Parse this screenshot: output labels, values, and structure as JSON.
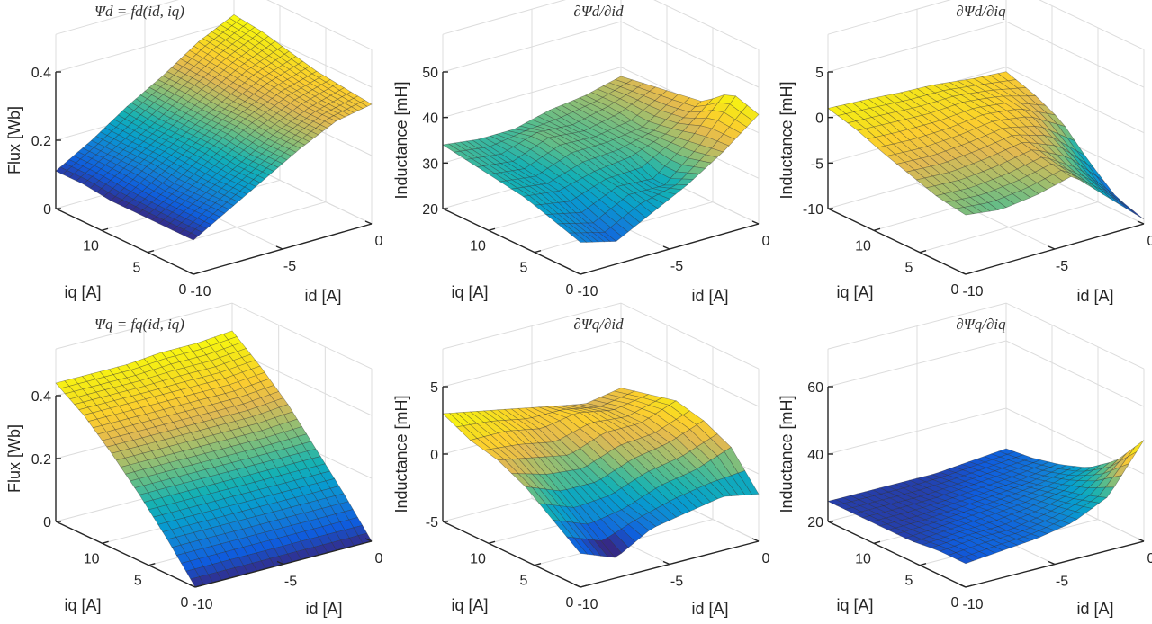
{
  "chart_data": [
    {
      "type": "surface",
      "title": "Ψd = fd(id, iq)",
      "title_parts": {
        "lhs": "Ψ",
        "lhs_sub": "d",
        "rhs": "f",
        "rhs_sub": "d",
        "args": [
          "i",
          "d",
          "i",
          "q"
        ]
      },
      "xlabel": "id [A]",
      "ylabel": "iq [A]",
      "zlabel": "Flux [Wb]",
      "x_ticks": [
        "-10",
        "-5",
        "0"
      ],
      "x_tick_values": [
        -10,
        -5,
        0
      ],
      "y_ticks": [
        "0",
        "5",
        "10"
      ],
      "y_tick_values": [
        0,
        5,
        10
      ],
      "z_ticks": [
        "0",
        "0.2",
        "0.4"
      ],
      "z_tick_values": [
        0,
        0.2,
        0.4
      ],
      "xlim": [
        -10,
        0
      ],
      "ylim": [
        0,
        15
      ],
      "zlim": [
        0,
        0.4
      ],
      "grid": true,
      "x": [
        -10,
        -8,
        -6,
        -4,
        -2,
        0
      ],
      "y": [
        0,
        3,
        6,
        9,
        12,
        15
      ],
      "z": [
        [
          0.1,
          0.16,
          0.22,
          0.28,
          0.33,
          0.35
        ],
        [
          0.1,
          0.16,
          0.22,
          0.28,
          0.33,
          0.36
        ],
        [
          0.1,
          0.16,
          0.23,
          0.29,
          0.34,
          0.37
        ],
        [
          0.1,
          0.17,
          0.23,
          0.29,
          0.35,
          0.39
        ],
        [
          0.11,
          0.17,
          0.23,
          0.3,
          0.36,
          0.41
        ],
        [
          0.11,
          0.17,
          0.24,
          0.3,
          0.37,
          0.42
        ]
      ],
      "crange": [
        0.1,
        0.42
      ],
      "mesh": {
        "nx": 40,
        "ny": 20
      }
    },
    {
      "type": "surface",
      "title": "∂Ψd/∂id",
      "xlabel": "id [A]",
      "ylabel": "iq [A]",
      "zlabel": "Inductance [mH]",
      "x_ticks": [
        "-10",
        "-5",
        "0"
      ],
      "x_tick_values": [
        -10,
        -5,
        0
      ],
      "y_ticks": [
        "0",
        "5",
        "10"
      ],
      "y_tick_values": [
        0,
        5,
        10
      ],
      "z_ticks": [
        "20",
        "30",
        "40",
        "50"
      ],
      "z_tick_values": [
        20,
        30,
        40,
        50
      ],
      "xlim": [
        -10,
        0
      ],
      "ylim": [
        0,
        15
      ],
      "zlim": [
        20,
        50
      ],
      "grid": true,
      "x": [
        -10,
        -8,
        -6,
        -4,
        -2,
        0
      ],
      "y": [
        0,
        3,
        6,
        9,
        12,
        15
      ],
      "z": [
        [
          27,
          25,
          29,
          33,
          38,
          44
        ],
        [
          29,
          27,
          31,
          30,
          37,
          46
        ],
        [
          31,
          30,
          32,
          33,
          36,
          41
        ],
        [
          32,
          31,
          34,
          34,
          35,
          40
        ],
        [
          33,
          32,
          35,
          34,
          36,
          39
        ],
        [
          34,
          33,
          33,
          35,
          36,
          38
        ]
      ],
      "crange": [
        22,
        46
      ],
      "mesh": {
        "nx": 30,
        "ny": 12
      }
    },
    {
      "type": "surface",
      "title": "∂Ψd/∂iq",
      "xlabel": "id [A]",
      "ylabel": "iq [A]",
      "zlabel": "Inductance [mH]",
      "x_ticks": [
        "-10",
        "-5",
        "0"
      ],
      "x_tick_values": [
        -10,
        -5,
        0
      ],
      "y_ticks": [
        "0",
        "5",
        "10"
      ],
      "y_tick_values": [
        0,
        5,
        10
      ],
      "z_ticks": [
        "-10",
        "-5",
        "0",
        "5"
      ],
      "z_tick_values": [
        -10,
        -5,
        0,
        5
      ],
      "xlim": [
        -10,
        0
      ],
      "ylim": [
        0,
        15
      ],
      "zlim": [
        -10,
        5
      ],
      "grid": true,
      "x": [
        -10,
        -8,
        -6,
        -4,
        -2,
        0
      ],
      "y": [
        0,
        3,
        6,
        9,
        12,
        15
      ],
      "z": [
        [
          -3.5,
          -4.0,
          -3.5,
          -2.5,
          -6.0,
          -9.5
        ],
        [
          -3.0,
          -3.2,
          -2.8,
          -2.0,
          -4.5,
          -8.5
        ],
        [
          -2.0,
          -2.2,
          -1.8,
          -1.2,
          -2.5,
          -6.0
        ],
        [
          -1.0,
          -1.2,
          -1.0,
          -0.5,
          -1.0,
          -3.0
        ],
        [
          0.2,
          0.0,
          -0.2,
          0.0,
          -0.5,
          -1.5
        ],
        [
          1.0,
          0.8,
          0.5,
          0.3,
          -0.2,
          -0.5
        ]
      ],
      "crange": [
        -9.5,
        1.5
      ],
      "mesh": {
        "nx": 22,
        "ny": 14
      }
    },
    {
      "type": "surface",
      "title": "Ψq = fq(id, iq)",
      "xlabel": "id [A]",
      "ylabel": "iq [A]",
      "zlabel": "Flux [Wb]",
      "x_ticks": [
        "-10",
        "-5",
        "0"
      ],
      "x_tick_values": [
        -10,
        -5,
        0
      ],
      "y_ticks": [
        "0",
        "5",
        "10"
      ],
      "y_tick_values": [
        0,
        5,
        10
      ],
      "z_ticks": [
        "0",
        "0.2",
        "0.4"
      ],
      "z_tick_values": [
        0,
        0.2,
        0.4
      ],
      "xlim": [
        -10,
        0
      ],
      "ylim": [
        0,
        15
      ],
      "zlim": [
        0,
        0.4
      ],
      "grid": true,
      "x": [
        -10,
        -8,
        -6,
        -4,
        -2,
        0
      ],
      "y": [
        0,
        3,
        6,
        9,
        12,
        15
      ],
      "z": [
        [
          0.0,
          0.0,
          0.0,
          0.0,
          0.0,
          0.0
        ],
        [
          0.11,
          0.11,
          0.11,
          0.11,
          0.11,
          0.11
        ],
        [
          0.21,
          0.21,
          0.21,
          0.21,
          0.21,
          0.21
        ],
        [
          0.3,
          0.3,
          0.3,
          0.3,
          0.3,
          0.31
        ],
        [
          0.38,
          0.38,
          0.38,
          0.38,
          0.38,
          0.39
        ],
        [
          0.44,
          0.44,
          0.44,
          0.45,
          0.45,
          0.46
        ]
      ],
      "crange": [
        0.0,
        0.46
      ],
      "mesh": {
        "nx": 20,
        "ny": 30
      }
    },
    {
      "type": "surface",
      "title": "∂Ψq/∂id",
      "xlabel": "id [A]",
      "ylabel": "iq [A]",
      "zlabel": "Inductance [mH]",
      "x_ticks": [
        "-10",
        "-5",
        "0"
      ],
      "x_tick_values": [
        -10,
        -5,
        0
      ],
      "y_ticks": [
        "0",
        "5",
        "10"
      ],
      "y_tick_values": [
        0,
        5,
        10
      ],
      "z_ticks": [
        "-5",
        "0",
        "5"
      ],
      "z_tick_values": [
        -5,
        0,
        5
      ],
      "xlim": [
        -10,
        0
      ],
      "ylim": [
        0,
        15
      ],
      "zlim": [
        -5,
        5
      ],
      "grid": true,
      "x": [
        -10,
        -8,
        -6,
        -4,
        -2,
        0
      ],
      "y": [
        0,
        3,
        6,
        9,
        12,
        15
      ],
      "z": [
        [
          -2.5,
          -3.5,
          -2.0,
          -1.5,
          -1.0,
          -1.5
        ],
        [
          -1.0,
          -2.0,
          -1.5,
          -0.5,
          0.0,
          1.0
        ],
        [
          0.5,
          -0.5,
          -0.5,
          0.5,
          1.0,
          2.0
        ],
        [
          1.5,
          1.0,
          0.5,
          1.5,
          1.5,
          2.5
        ],
        [
          2.0,
          2.0,
          1.5,
          2.0,
          1.5,
          2.0
        ],
        [
          3.0,
          2.5,
          2.0,
          1.5,
          1.0,
          1.5
        ]
      ],
      "crange": [
        -3.0,
        3.0
      ],
      "mesh": {
        "nx": 26,
        "ny": 10
      }
    },
    {
      "type": "surface",
      "title": "∂Ψq/∂iq",
      "xlabel": "id [A]",
      "ylabel": "iq [A]",
      "zlabel": "Inductance [mH]",
      "x_ticks": [
        "-10",
        "-5",
        "0"
      ],
      "x_tick_values": [
        -10,
        -5,
        0
      ],
      "y_ticks": [
        "0",
        "5",
        "10"
      ],
      "y_tick_values": [
        0,
        5,
        10
      ],
      "z_ticks": [
        "20",
        "40",
        "60"
      ],
      "z_tick_values": [
        20,
        40,
        60
      ],
      "xlim": [
        -10,
        0
      ],
      "ylim": [
        0,
        15
      ],
      "zlim": [
        20,
        60
      ],
      "grid": true,
      "x": [
        -10,
        -8,
        -6,
        -4,
        -2,
        0
      ],
      "y": [
        0,
        3,
        6,
        9,
        12,
        15
      ],
      "z": [
        [
          27,
          28,
          29,
          31,
          36,
          50
        ],
        [
          27,
          28,
          28,
          30,
          33,
          40
        ],
        [
          26,
          27,
          28,
          29,
          31,
          34
        ],
        [
          26,
          26,
          27,
          28,
          29,
          31
        ],
        [
          26,
          26,
          26,
          27,
          28,
          29
        ],
        [
          26,
          26,
          26,
          26,
          27,
          28
        ]
      ],
      "crange": [
        25,
        50
      ],
      "mesh": {
        "nx": 24,
        "ny": 16
      }
    }
  ]
}
